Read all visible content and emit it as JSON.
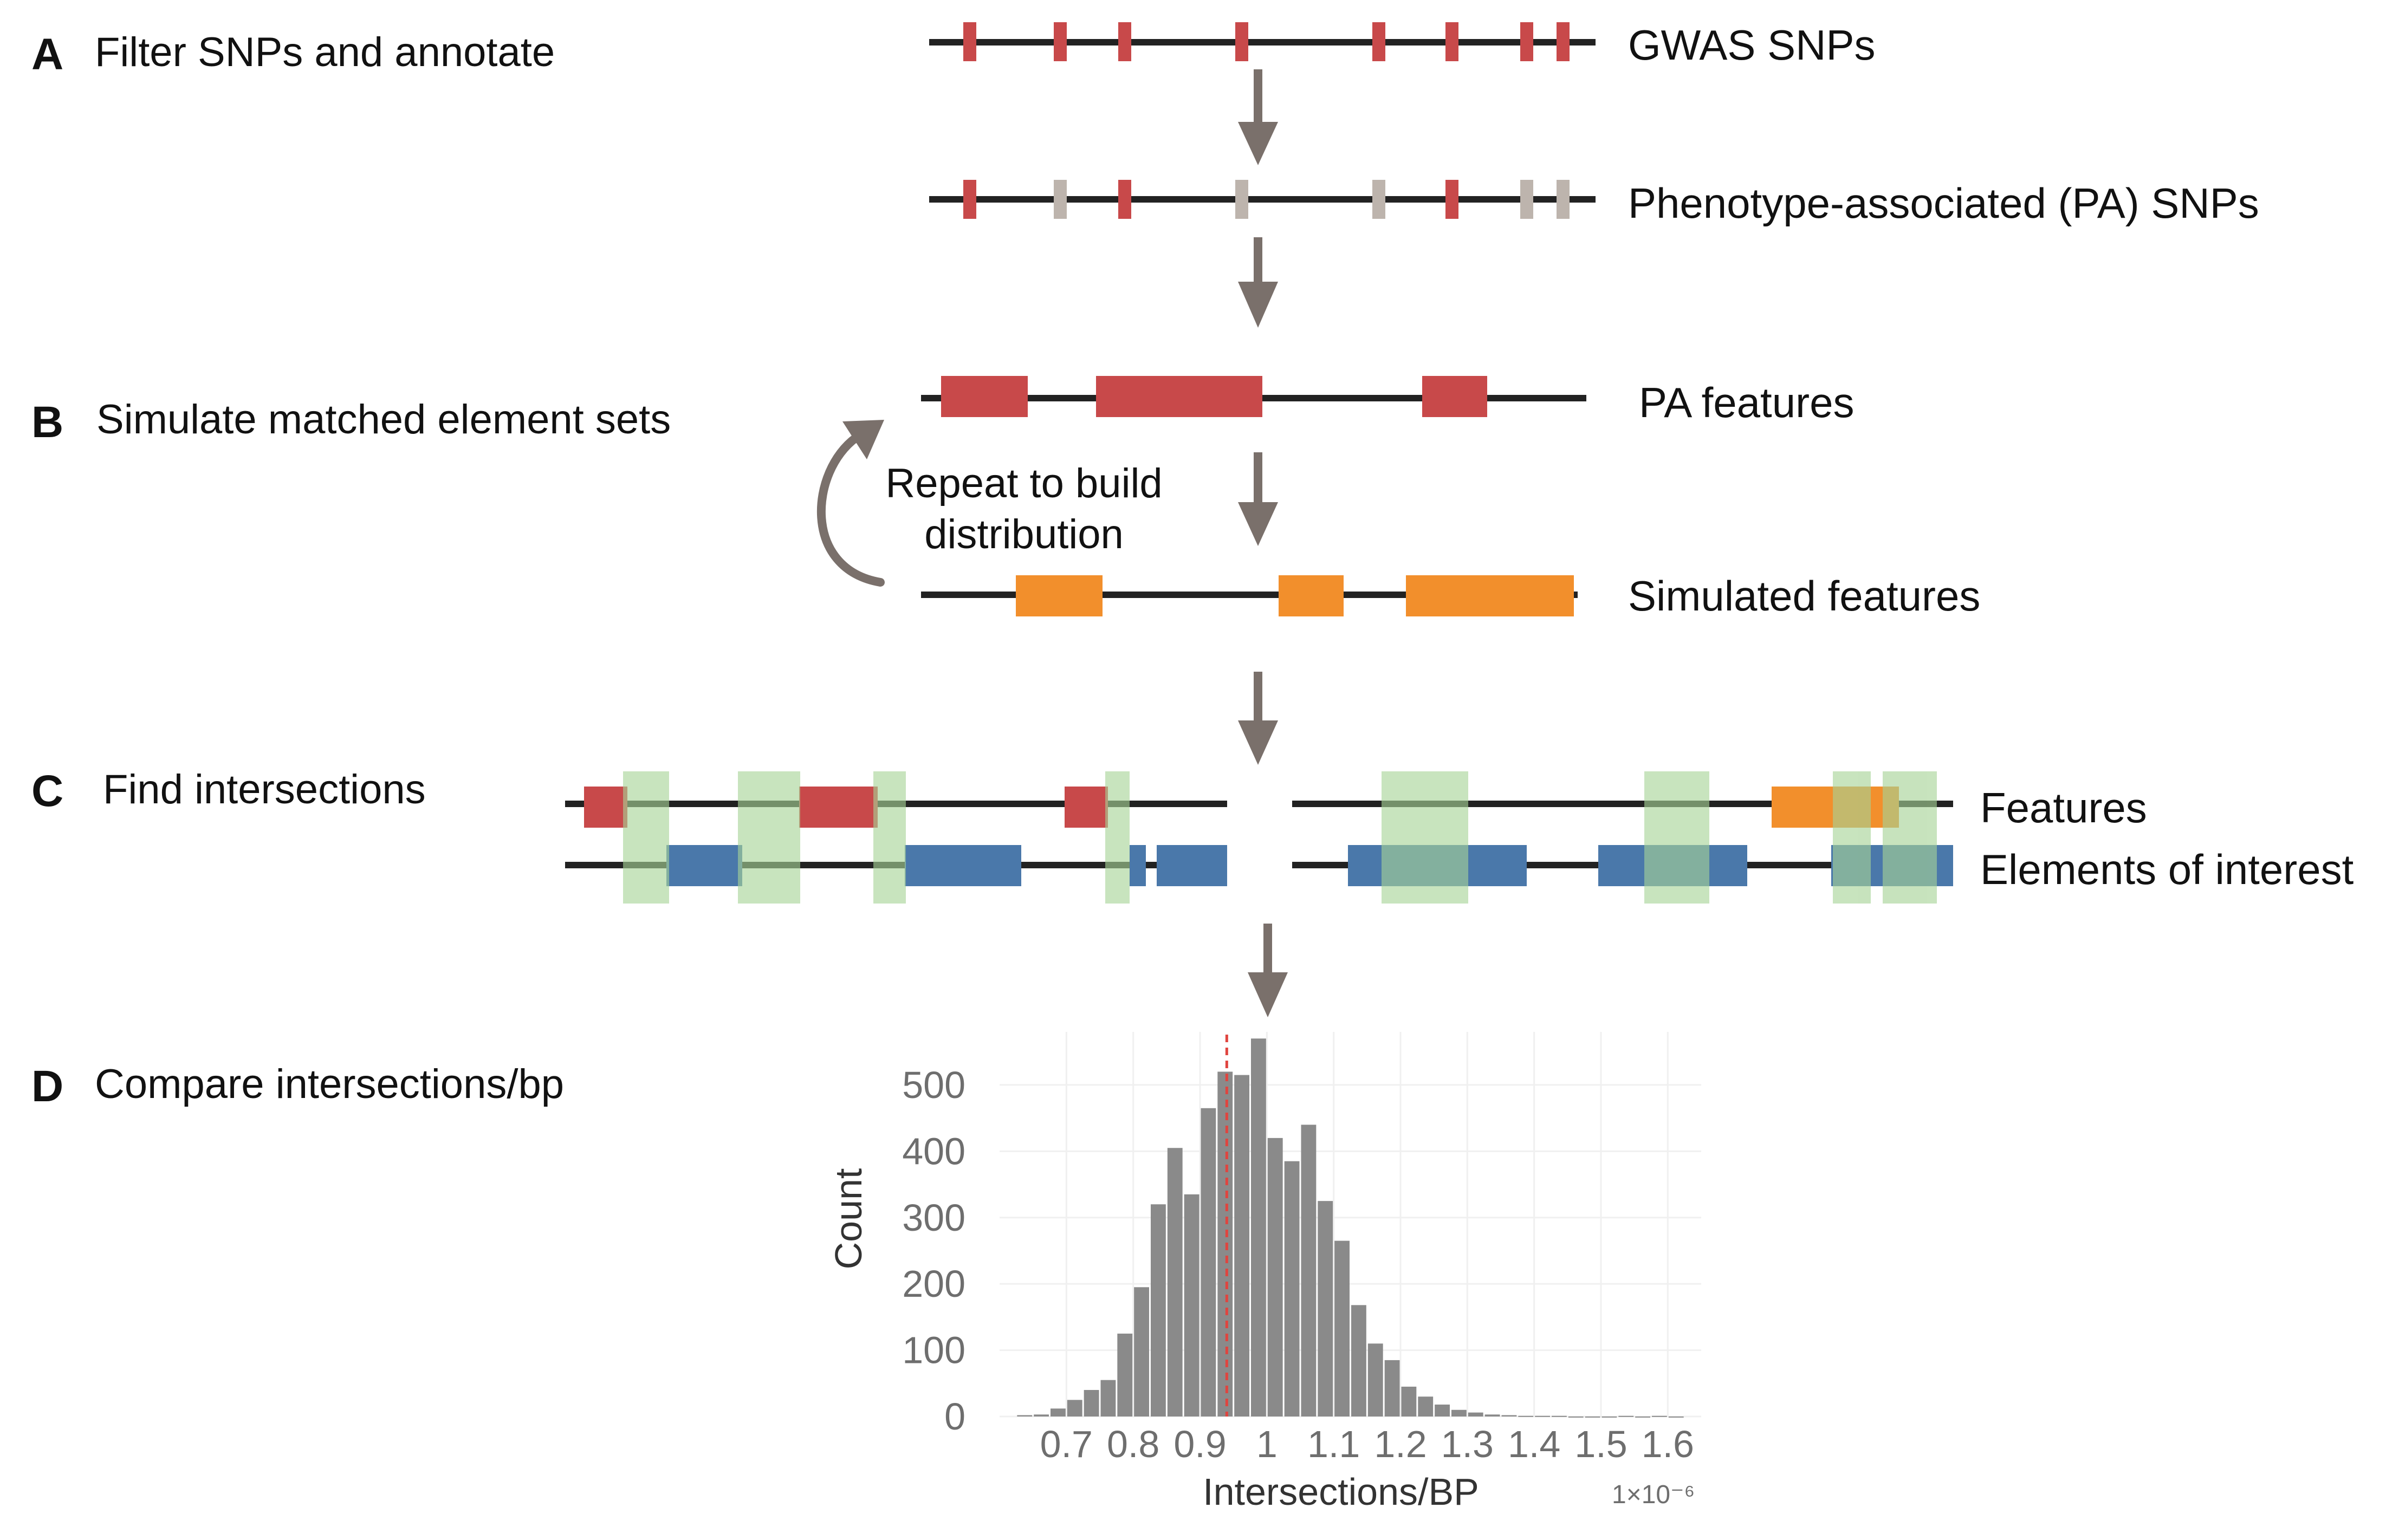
{
  "steps": {
    "A": {
      "letter": "A",
      "title": "Filter SNPs and annotate"
    },
    "B": {
      "letter": "B",
      "title": "Simulate matched element sets"
    },
    "C": {
      "letter": "C",
      "title": "Find intersections"
    },
    "D": {
      "letter": "D",
      "title": "Compare intersections/bp"
    }
  },
  "tracks": {
    "gwas": "GWAS SNPs",
    "pa_snps": "Phenotype-associated (PA) SNPs",
    "pa_features": "PA features",
    "simulated": "Simulated features",
    "features": "Features",
    "elements": "Elements of interest"
  },
  "loop_note": [
    "Repeat to build",
    "distribution"
  ],
  "colors": {
    "pa_red": "#c8494a",
    "excluded_grey": "#bdb4ad",
    "simulated_orange": "#f28f2c",
    "element_blue": "#4a78aa",
    "overlap_green": "#a6d396",
    "arrow_grey": "#7a706b",
    "line": "#222222",
    "hist_grey": "#8a8a8a",
    "observed_line": "#e0443f"
  },
  "chart_data": {
    "type": "bar",
    "title": "",
    "xlabel": "Intersections/BP",
    "ylabel": "Count",
    "x_scale_note": "1×10⁻⁶",
    "xlim": [
      0.6,
      1.65
    ],
    "ylim": [
      0,
      580
    ],
    "x_ticks": [
      "0.7",
      "0.8",
      "0.9",
      "1",
      "1.1",
      "1.2",
      "1.3",
      "1.4",
      "1.5",
      "1.6"
    ],
    "y_ticks": [
      "0",
      "100",
      "200",
      "300",
      "400",
      "500"
    ],
    "bin_width": 0.025,
    "bin_starts": [
      0.625,
      0.65,
      0.675,
      0.7,
      0.725,
      0.75,
      0.775,
      0.8,
      0.825,
      0.85,
      0.875,
      0.9,
      0.925,
      0.95,
      0.975,
      1.0,
      1.025,
      1.05,
      1.075,
      1.1,
      1.125,
      1.15,
      1.175,
      1.2,
      1.225,
      1.25,
      1.275,
      1.3,
      1.325,
      1.35,
      1.375,
      1.4,
      1.425,
      1.45,
      1.475,
      1.5,
      1.525,
      1.55,
      1.575,
      1.6
    ],
    "values": [
      2,
      3,
      12,
      25,
      40,
      55,
      125,
      195,
      320,
      405,
      335,
      465,
      520,
      515,
      570,
      420,
      385,
      440,
      325,
      265,
      168,
      110,
      85,
      45,
      30,
      18,
      10,
      6,
      3,
      2,
      1,
      1,
      1,
      0,
      0,
      0,
      1,
      0,
      1,
      0
    ],
    "observed_value": 0.94
  }
}
